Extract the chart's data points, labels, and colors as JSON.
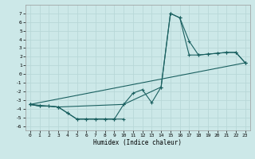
{
  "xlabel": "Humidex (Indice chaleur)",
  "background_color": "#cce8e8",
  "grid_color": "#b8d8d8",
  "line_color": "#1a6060",
  "xlim": [
    -0.5,
    23.5
  ],
  "ylim": [
    -6.5,
    8.0
  ],
  "xticks": [
    0,
    1,
    2,
    3,
    4,
    5,
    6,
    7,
    8,
    9,
    10,
    11,
    12,
    13,
    14,
    15,
    16,
    17,
    18,
    19,
    20,
    21,
    22,
    23
  ],
  "yticks": [
    -6,
    -5,
    -4,
    -3,
    -2,
    -1,
    0,
    1,
    2,
    3,
    4,
    5,
    6,
    7
  ],
  "curve1_x": [
    0,
    1,
    2,
    3,
    4,
    5,
    6,
    7,
    8,
    9,
    10,
    11,
    12,
    13,
    14,
    15,
    16,
    17,
    18,
    19,
    20,
    21,
    22,
    23
  ],
  "curve1_y": [
    -3.5,
    -3.7,
    -3.7,
    -3.8,
    -4.5,
    -5.2,
    -5.2,
    -5.2,
    -5.2,
    -5.2,
    -3.5,
    -2.2,
    -1.8,
    -3.3,
    -1.5,
    7.0,
    6.5,
    2.2,
    2.2,
    2.3,
    2.4,
    2.5,
    2.5,
    1.3
  ],
  "curve2_x": [
    0,
    1,
    2,
    3,
    10,
    14,
    15,
    16,
    17,
    18,
    19,
    20,
    21,
    22,
    23
  ],
  "curve2_y": [
    -3.5,
    -3.7,
    -3.7,
    -3.8,
    -3.5,
    -1.5,
    7.0,
    6.5,
    3.8,
    2.2,
    2.3,
    2.4,
    2.5,
    2.5,
    1.3
  ],
  "curve3_x": [
    0,
    23
  ],
  "curve3_y": [
    -3.5,
    1.3
  ],
  "curve4_x": [
    0,
    3,
    4,
    5,
    6,
    7,
    8,
    9,
    10
  ],
  "curve4_y": [
    -3.5,
    -3.8,
    -4.5,
    -5.2,
    -5.2,
    -5.2,
    -5.2,
    -5.2,
    -5.2
  ],
  "xlabel_fontsize": 5.5,
  "tick_fontsize": 4.5
}
